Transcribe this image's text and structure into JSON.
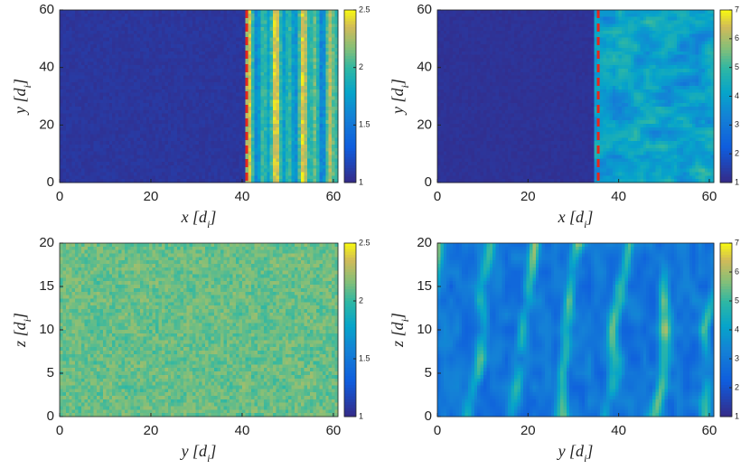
{
  "chart_data": [
    {
      "type": "heatmap",
      "xlabel": "x [d_i]",
      "ylabel": "y [d_i]",
      "xlim": [
        0,
        61
      ],
      "xticks": [
        0,
        20,
        40,
        60
      ],
      "ylim": [
        0,
        60
      ],
      "yticks": [
        0,
        20,
        40,
        60
      ],
      "clim": [
        1,
        2.5
      ],
      "cticks": [
        1,
        1.5,
        2,
        2.5
      ],
      "shock_x": 41,
      "shock_color": "#e8261a"
    },
    {
      "type": "heatmap",
      "xlabel": "x [d_i]",
      "ylabel": "y [d_i]",
      "xlim": [
        0,
        61
      ],
      "xticks": [
        0,
        20,
        40,
        60
      ],
      "ylim": [
        0,
        60
      ],
      "yticks": [
        0,
        20,
        40,
        60
      ],
      "clim": [
        1,
        7
      ],
      "cticks": [
        1,
        2,
        3,
        4,
        5,
        6,
        7
      ],
      "shock_x": 35.5,
      "shock_color": "#e8261a"
    },
    {
      "type": "heatmap",
      "xlabel": "y [d_i]",
      "ylabel": "z [d_i]",
      "xlim": [
        0,
        61
      ],
      "xticks": [
        0,
        20,
        40,
        60
      ],
      "ylim": [
        0,
        20
      ],
      "yticks": [
        0,
        5,
        10,
        15,
        20
      ],
      "clim": [
        1,
        2.5
      ],
      "cticks": [
        1,
        1.5,
        2,
        2.5
      ]
    },
    {
      "type": "heatmap",
      "xlabel": "y [d_i]",
      "ylabel": "z [d_i]",
      "xlim": [
        0,
        61
      ],
      "xticks": [
        0,
        20,
        40,
        60
      ],
      "ylim": [
        0,
        20
      ],
      "yticks": [
        0,
        5,
        10,
        15,
        20
      ],
      "clim": [
        1,
        7
      ],
      "cticks": [
        1,
        2,
        3,
        4,
        5,
        6,
        7
      ]
    }
  ]
}
